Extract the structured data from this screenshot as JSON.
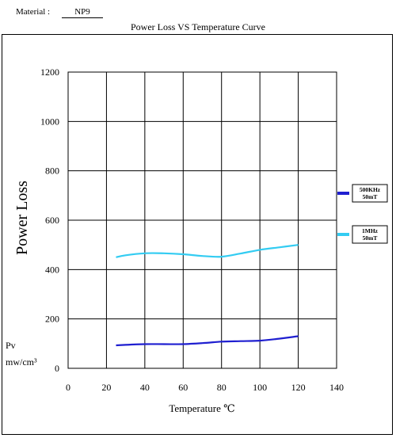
{
  "header": {
    "material_label": "Material :",
    "material_value": "NP9",
    "title": "Power Loss VS Temperature  Curve"
  },
  "chart_data": {
    "type": "line",
    "title": "Power Loss VS Temperature  Curve",
    "xlabel": "Temperature  ℃",
    "ylabel": "Power     Loss",
    "ylabel_units_line1": "Pv",
    "ylabel_units_line2": "mw/cm³",
    "xlim": [
      0,
      140
    ],
    "ylim": [
      0,
      1200
    ],
    "x_ticks": [
      "0",
      "20",
      "40",
      "60",
      "80",
      "100",
      "120",
      "140"
    ],
    "y_ticks": [
      "0",
      "200",
      "400",
      "600",
      "800",
      "1000",
      "1200"
    ],
    "grid": true,
    "legend_position": "right",
    "series": [
      {
        "name_line1": "500KHz",
        "name_line2": "50mT",
        "color": "#1f1fd0",
        "x": [
          25,
          30,
          40,
          50,
          60,
          70,
          80,
          90,
          100,
          110,
          120
        ],
        "y": [
          93,
          95,
          98,
          98,
          98,
          102,
          108,
          110,
          112,
          120,
          130
        ]
      },
      {
        "name_line1": "1MHz",
        "name_line2": "50mT",
        "color": "#33ccf2",
        "x": [
          25,
          30,
          40,
          50,
          60,
          70,
          80,
          90,
          100,
          110,
          120
        ],
        "y": [
          450,
          458,
          466,
          466,
          462,
          455,
          452,
          465,
          480,
          490,
          500
        ]
      }
    ]
  }
}
